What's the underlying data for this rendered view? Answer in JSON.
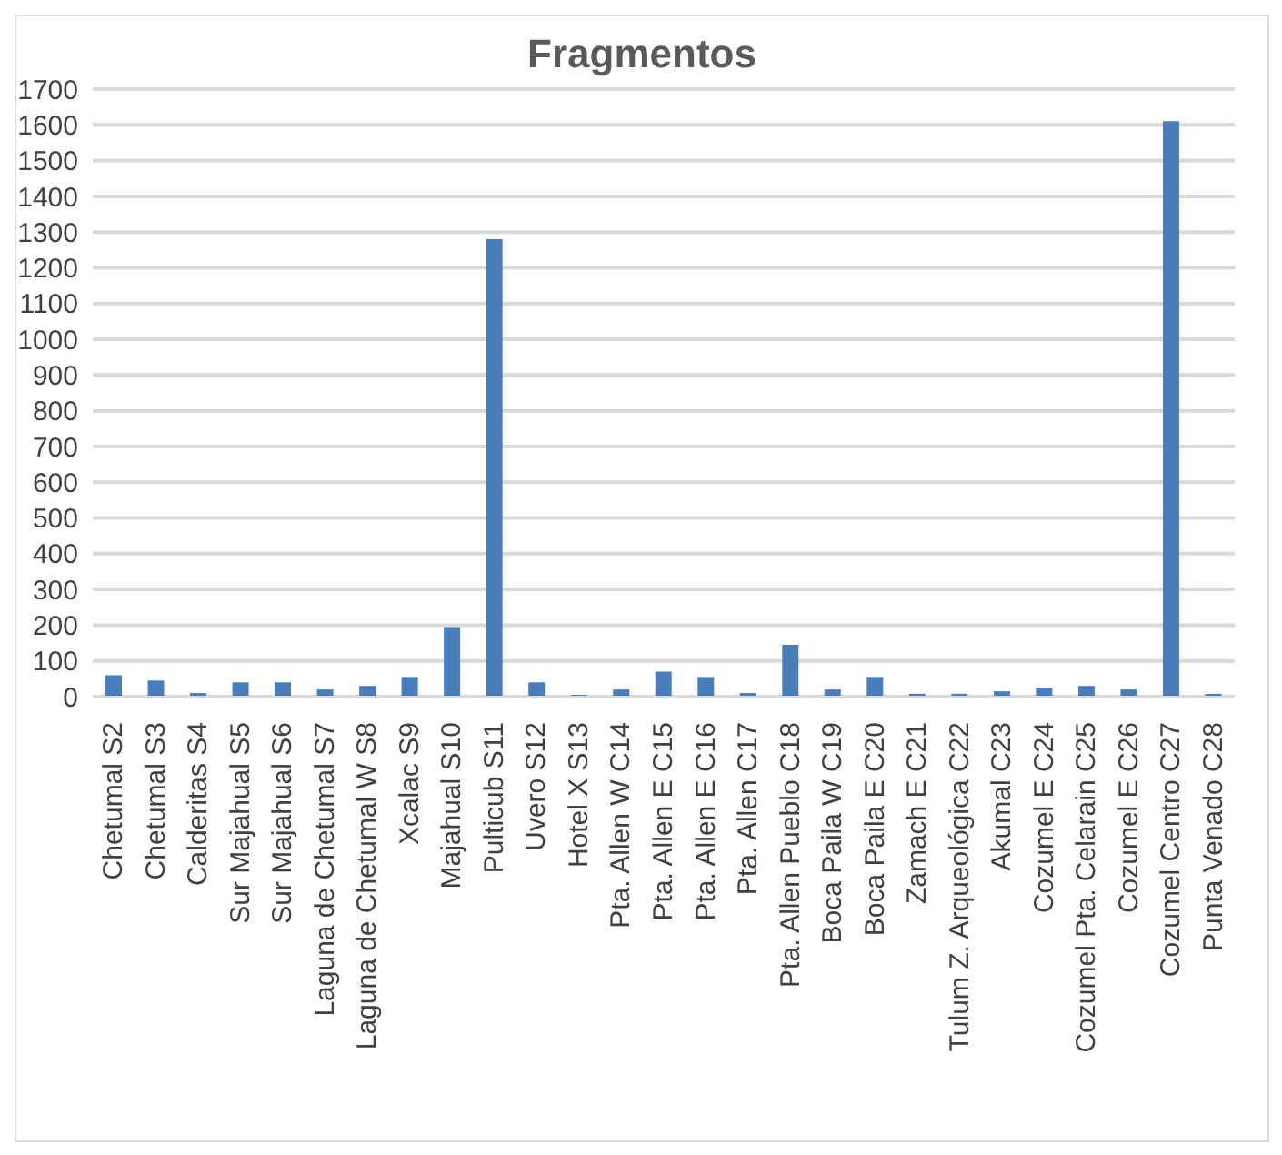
{
  "chart_data": {
    "type": "bar",
    "title": "Fragmentos",
    "categories": [
      "Chetumal S2",
      "Chetumal S3",
      "Calderitas S4",
      "Sur Majahual S5",
      "Sur Majahual S6",
      "Laguna de Chetumal S7",
      "Laguna de Chetumal W S8",
      "Xcalac S9",
      "Majahual S10",
      "Pulticub S11",
      "Uvero S12",
      "Hotel X S13",
      "Pta. Allen W C14",
      "Pta. Allen E C15",
      "Pta. Allen E C16",
      "Pta. Allen C17",
      "Pta. Allen Pueblo C18",
      "Boca Paila W C19",
      "Boca Paila E C20",
      "Zamach E C21",
      "Tulum Z. Arqueológica C22",
      "Akumal C23",
      "Cozumel E C24",
      "Cozumel Pta. Celarain C25",
      "Cozumel E C26",
      "Cozumel Centro C27",
      "Punta Venado C28"
    ],
    "values": [
      60,
      45,
      10,
      40,
      40,
      20,
      30,
      55,
      195,
      1280,
      40,
      5,
      20,
      70,
      55,
      10,
      145,
      20,
      55,
      8,
      8,
      15,
      25,
      30,
      20,
      1610,
      8
    ],
    "color": "#4a7ebb",
    "ylim": [
      0,
      1700
    ],
    "yticks": [
      0,
      100,
      200,
      300,
      400,
      500,
      600,
      700,
      800,
      900,
      1000,
      1100,
      1200,
      1300,
      1400,
      1500,
      1600,
      1700
    ],
    "grid": "y"
  }
}
